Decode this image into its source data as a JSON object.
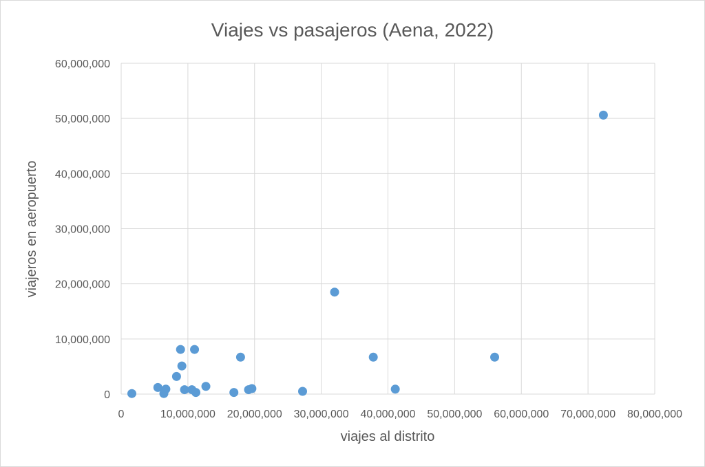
{
  "chart_data": {
    "type": "scatter",
    "title": "Viajes vs pasajeros (Aena, 2022)",
    "xlabel": "viajes al distrito",
    "ylabel": "viajeros en aeropuerto",
    "xlim": [
      0,
      80000000
    ],
    "ylim": [
      0,
      60000000
    ],
    "x_ticks": [
      "0",
      "10,000,000",
      "20,000,000",
      "30,000,000",
      "40,000,000",
      "50,000,000",
      "60,000,000",
      "70,000,000",
      "80,000,000"
    ],
    "y_ticks": [
      "0",
      "10,000,000",
      "20,000,000",
      "30,000,000",
      "40,000,000",
      "50,000,000",
      "60,000,000"
    ],
    "grid": true,
    "legend": "none",
    "color": "#5b9bd5",
    "points": [
      {
        "x": 1600000,
        "y": 100000
      },
      {
        "x": 5500000,
        "y": 1200000
      },
      {
        "x": 6400000,
        "y": 100000
      },
      {
        "x": 6700000,
        "y": 900000
      },
      {
        "x": 8300000,
        "y": 3200000
      },
      {
        "x": 8900000,
        "y": 8100000
      },
      {
        "x": 9100000,
        "y": 5100000
      },
      {
        "x": 9500000,
        "y": 800000
      },
      {
        "x": 10600000,
        "y": 800000
      },
      {
        "x": 11000000,
        "y": 8100000
      },
      {
        "x": 11200000,
        "y": 300000
      },
      {
        "x": 12700000,
        "y": 1400000
      },
      {
        "x": 16900000,
        "y": 300000
      },
      {
        "x": 17900000,
        "y": 6700000
      },
      {
        "x": 19100000,
        "y": 800000
      },
      {
        "x": 19600000,
        "y": 1000000
      },
      {
        "x": 27200000,
        "y": 500000
      },
      {
        "x": 32000000,
        "y": 18500000
      },
      {
        "x": 37800000,
        "y": 6700000
      },
      {
        "x": 41100000,
        "y": 900000
      },
      {
        "x": 56000000,
        "y": 6700000
      },
      {
        "x": 72300000,
        "y": 50600000
      }
    ]
  }
}
